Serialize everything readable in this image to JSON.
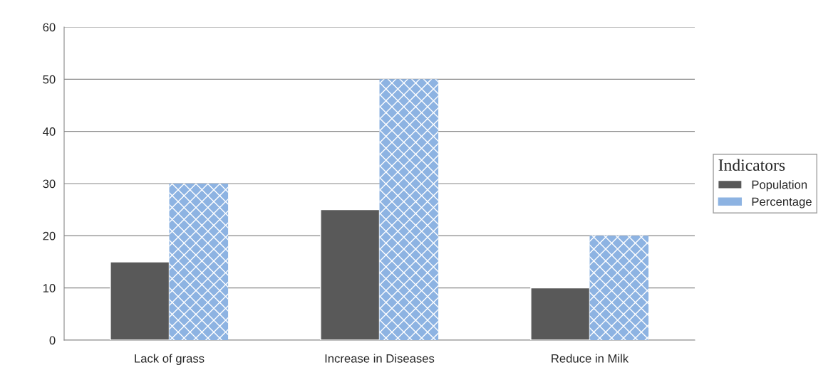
{
  "chart_data": {
    "type": "bar",
    "categories": [
      "Lack of grass",
      "Increase in Diseases",
      "Reduce in Milk"
    ],
    "series": [
      {
        "name": "Population",
        "color": "#595959",
        "values": [
          15,
          25,
          10
        ]
      },
      {
        "name": "Percentage",
        "color": "#8db3e2",
        "values": [
          30,
          50,
          20
        ]
      }
    ],
    "legend_title": "Indicators",
    "legend": "right",
    "ylim": [
      0,
      60
    ],
    "yticks": [
      0,
      10,
      20,
      30,
      40,
      50,
      60
    ],
    "grid": "y"
  }
}
